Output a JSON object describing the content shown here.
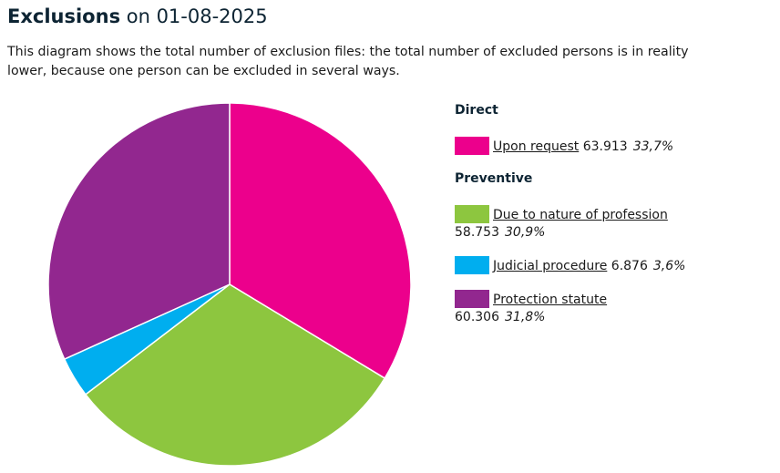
{
  "header": {
    "title_strong": "Exclusions",
    "title_rest": " on 01-08-2025",
    "intro": "This diagram shows the total number of exclusion files: the total number of excluded persons is in reality lower, because one person can be excluded in several ways."
  },
  "legend": {
    "group_direct": "Direct",
    "group_preventive": "Preventive",
    "items": [
      {
        "label": "Upon request",
        "value": "63.913",
        "percent": "33,7%",
        "color": "#ec008c"
      },
      {
        "label": "Due to nature of profession",
        "value": "58.753",
        "percent": "30,9%",
        "color": "#8dc63f"
      },
      {
        "label": "Judicial procedure",
        "value": "6.876",
        "percent": "3,6%",
        "color": "#00aeef"
      },
      {
        "label": "Protection statute",
        "value": "60.306",
        "percent": "31,8%",
        "color": "#92278f"
      }
    ]
  },
  "chart_data": {
    "type": "pie",
    "title": "Exclusions on 01-08-2025",
    "categories": [
      "Upon request",
      "Due to nature of profession",
      "Judicial procedure",
      "Protection statute"
    ],
    "values": [
      63913,
      58753,
      6876,
      60306
    ],
    "percentages": [
      33.7,
      30.9,
      3.6,
      31.8
    ],
    "colors": [
      "#ec008c",
      "#8dc63f",
      "#00aeef",
      "#92278f"
    ],
    "start": "12 o'clock",
    "direction": "clockwise",
    "legend_position": "right"
  }
}
